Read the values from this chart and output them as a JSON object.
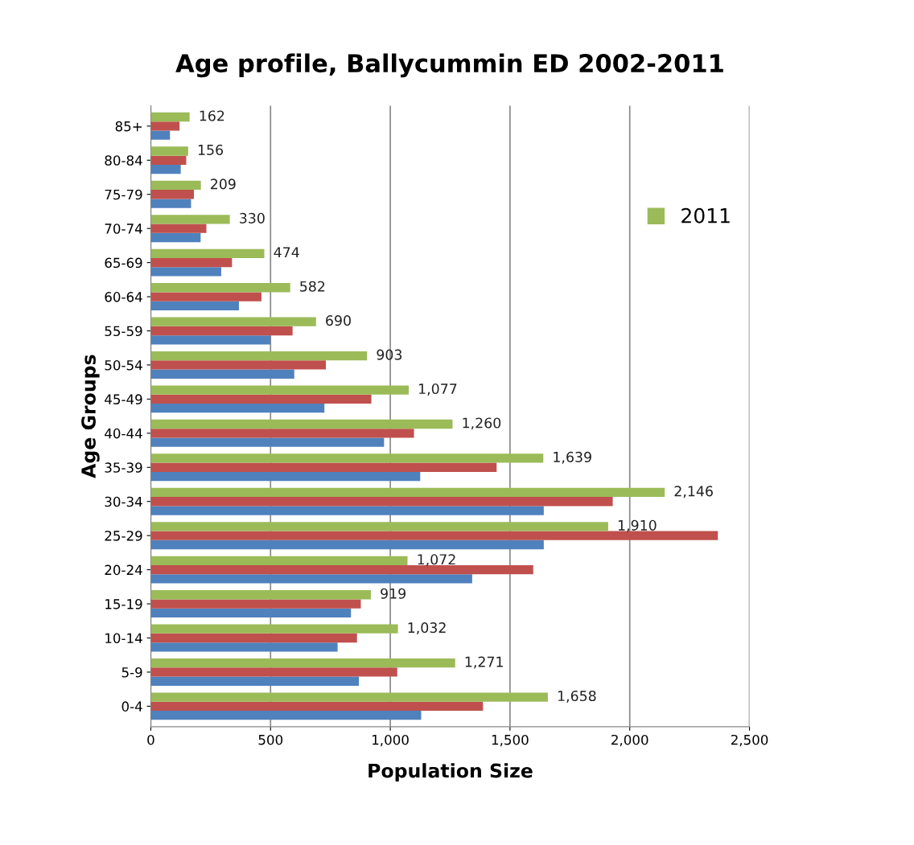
{
  "chart_data": {
    "type": "bar",
    "orientation": "horizontal",
    "title": "Age profile, Ballycummin ED 2002-2011",
    "xlabel": "Population Size",
    "ylabel": "Age Groups",
    "categories": [
      "85+",
      "80-84",
      "75-79",
      "70-74",
      "65-69",
      "60-64",
      "55-59",
      "50-54",
      "45-49",
      "40-44",
      "35-39",
      "30-34",
      "25-29",
      "20-24",
      "15-19",
      "10-14",
      "5-9",
      "0-4"
    ],
    "series": [
      {
        "color": "#4f81bd",
        "values": [
          80,
          125,
          168,
          208,
          294,
          368,
          499,
          599,
          725,
          974,
          1125,
          1641,
          1641,
          1342,
          836,
          780,
          869,
          1129
        ]
      },
      {
        "color": "#c0504d",
        "values": [
          120,
          148,
          180,
          232,
          339,
          462,
          592,
          731,
          921,
          1099,
          1444,
          1929,
          2368,
          1597,
          877,
          861,
          1029,
          1387
        ]
      },
      {
        "name": "2011",
        "color": "#9bbb59",
        "values": [
          162,
          156,
          209,
          330,
          474,
          582,
          690,
          903,
          1077,
          1260,
          1639,
          2146,
          1910,
          1072,
          919,
          1032,
          1271,
          1658
        ],
        "value_labels": [
          "162",
          "156",
          "209",
          "330",
          "474",
          "582",
          "690",
          "903",
          "1,077",
          "1,260",
          "1,639",
          "2,146",
          "1,910",
          "1,072",
          "919",
          "1,032",
          "1,271",
          "1,658"
        ]
      }
    ],
    "xlim": [
      0,
      2500
    ],
    "xticks": [
      {
        "value": 0,
        "label": "0"
      },
      {
        "value": 500,
        "label": "500"
      },
      {
        "value": 1000,
        "label": "1,000"
      },
      {
        "value": 1500,
        "label": "1,500"
      },
      {
        "value": 2000,
        "label": "2,000"
      },
      {
        "value": 2500,
        "label": "2,500"
      }
    ],
    "grid": "x",
    "legend": "right"
  }
}
